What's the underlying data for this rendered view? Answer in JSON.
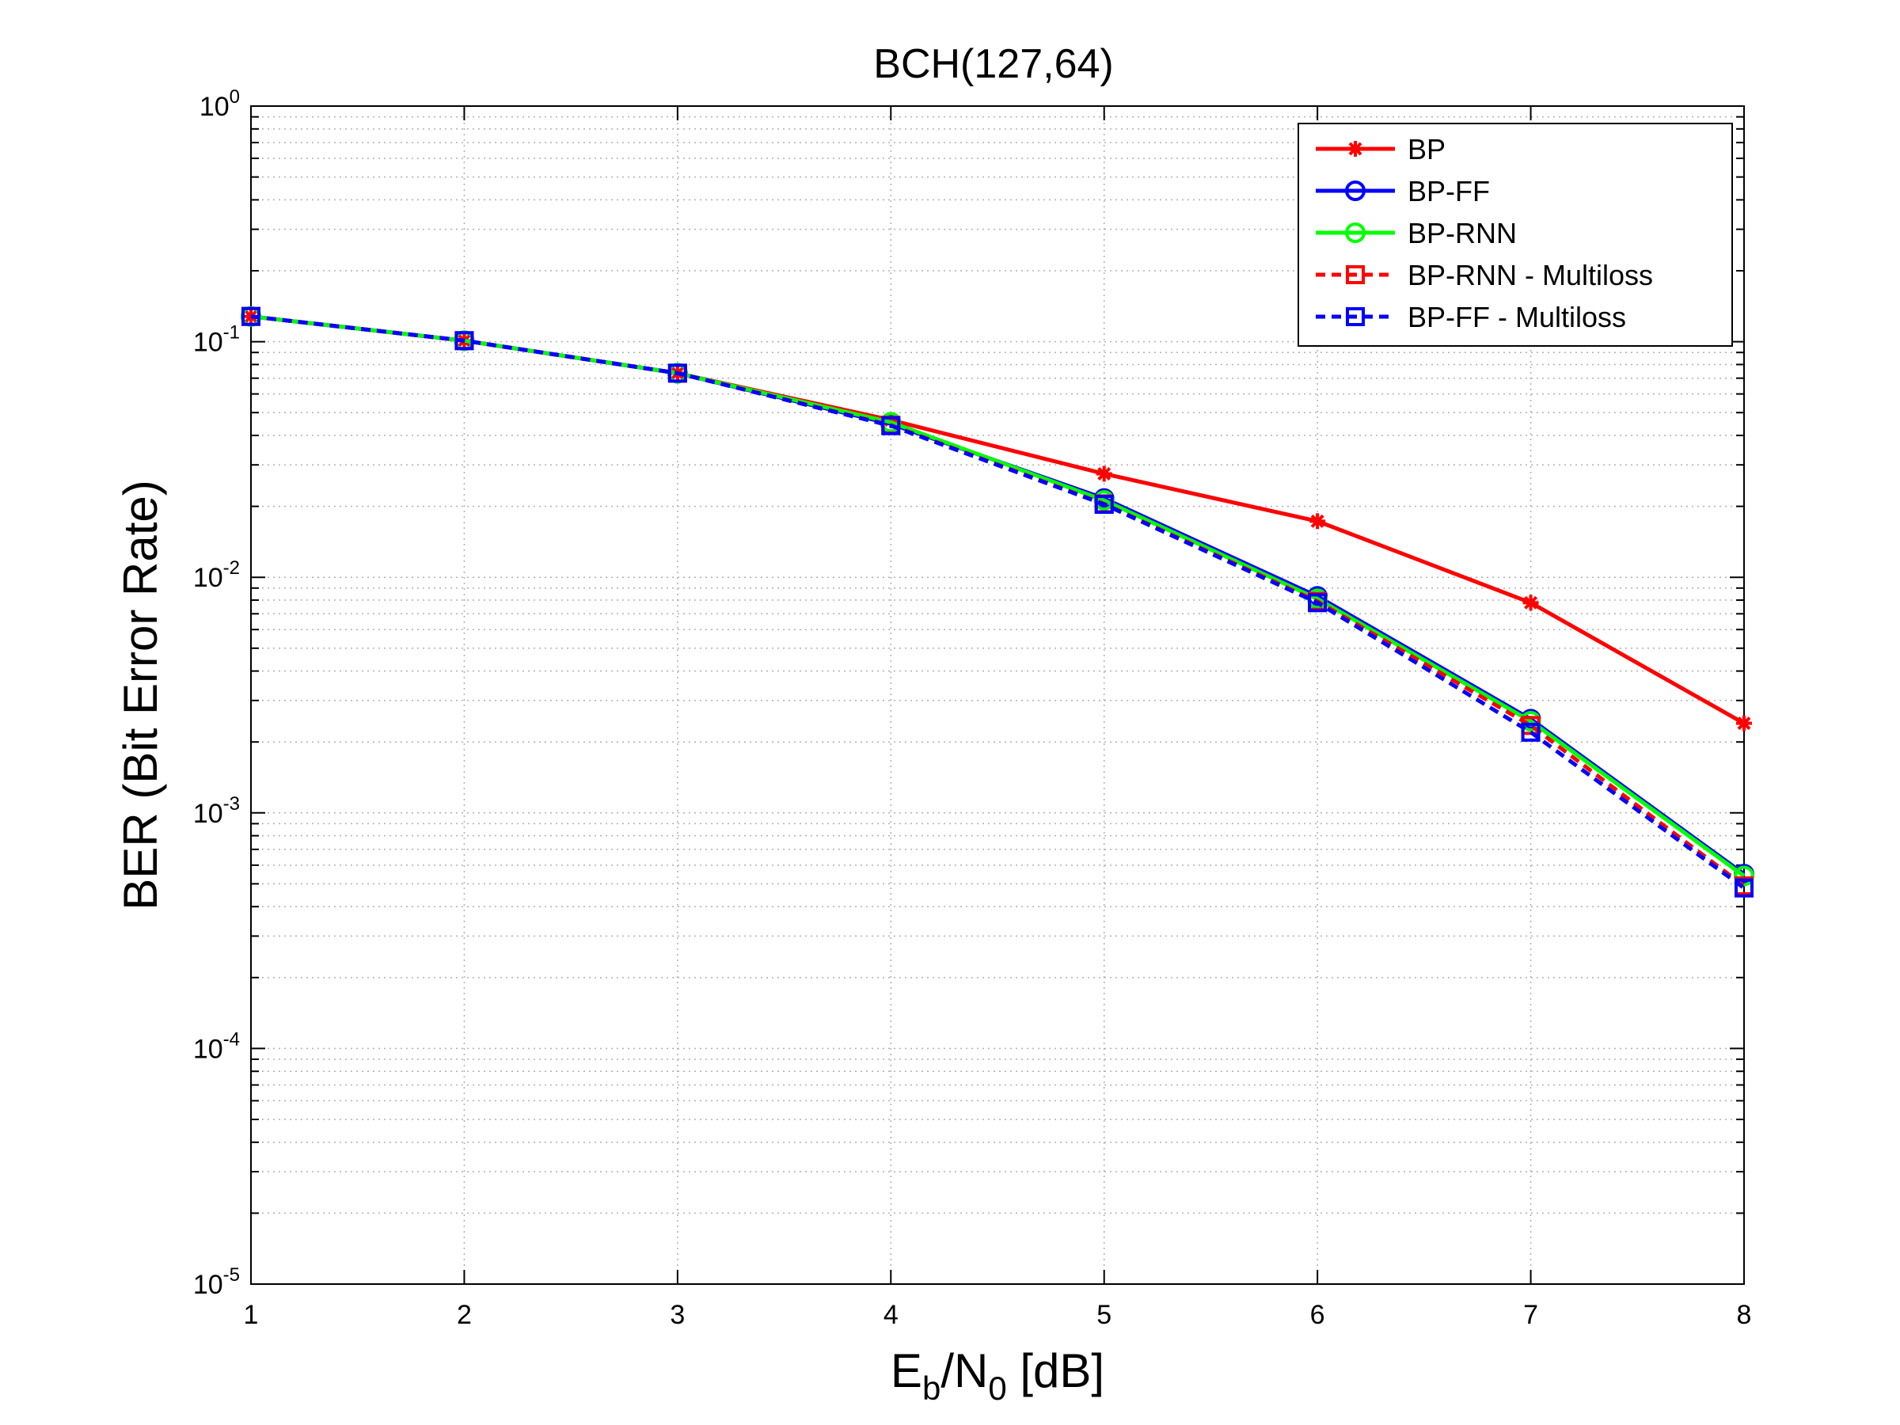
{
  "chart_data": {
    "type": "line",
    "title": "BCH(127,64)",
    "xlabel": "E_b/N_0 [dB]",
    "ylabel": "BER (Bit Error Rate)",
    "xlim": [
      1,
      8
    ],
    "ylim": [
      1e-05,
      1
    ],
    "yscale": "log",
    "grid": true,
    "legend_position": "top-right",
    "x": [
      1,
      2,
      3,
      4,
      5,
      6,
      7,
      8
    ],
    "x_tick_labels": [
      "1",
      "2",
      "3",
      "4",
      "5",
      "6",
      "7",
      "8"
    ],
    "y_tick_labels": [
      {
        "base": "10",
        "exp": "0",
        "value": 1
      },
      {
        "base": "10",
        "exp": "-1",
        "value": 0.1
      },
      {
        "base": "10",
        "exp": "-2",
        "value": 0.01
      },
      {
        "base": "10",
        "exp": "-3",
        "value": 0.001
      },
      {
        "base": "10",
        "exp": "-4",
        "value": 0.0001
      },
      {
        "base": "10",
        "exp": "-5",
        "value": 1e-05
      }
    ],
    "series": [
      {
        "name": "BP",
        "color": "#ff0000",
        "dashed": false,
        "marker": "asterisk",
        "values": [
          0.128,
          0.101,
          0.0735,
          0.0465,
          0.0275,
          0.0173,
          0.0078,
          0.0024
        ]
      },
      {
        "name": "BP-FF",
        "color": "#0000ff",
        "dashed": false,
        "marker": "circle",
        "values": [
          0.128,
          0.101,
          0.0735,
          0.0448,
          0.0216,
          0.0083,
          0.0025,
          0.00055
        ]
      },
      {
        "name": "BP-RNN",
        "color": "#00ff00",
        "dashed": false,
        "marker": "circle",
        "values": [
          0.128,
          0.101,
          0.0735,
          0.0455,
          0.0212,
          0.0081,
          0.00245,
          0.00054
        ]
      },
      {
        "name": "BP-RNN - Multiloss",
        "color": "#ff0000",
        "dashed": true,
        "marker": "square",
        "values": [
          0.128,
          0.101,
          0.0735,
          0.0442,
          0.0205,
          0.0079,
          0.00235,
          0.00049
        ]
      },
      {
        "name": "BP-FF - Multiloss",
        "color": "#0000ff",
        "dashed": true,
        "marker": "square",
        "values": [
          0.128,
          0.101,
          0.0735,
          0.044,
          0.0204,
          0.0078,
          0.0022,
          0.00048
        ]
      }
    ]
  }
}
